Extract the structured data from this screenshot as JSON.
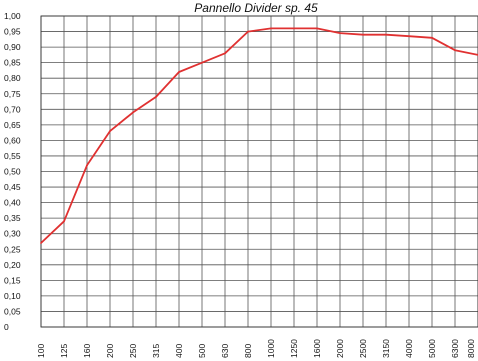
{
  "chart_data": {
    "type": "line",
    "title": "Pannello Divider sp. 45",
    "xlabel": "",
    "ylabel": "",
    "categories": [
      "100",
      "125",
      "160",
      "200",
      "250",
      "315",
      "400",
      "500",
      "630",
      "800",
      "1000",
      "1250",
      "1600",
      "2000",
      "2500",
      "3150",
      "4000",
      "5000",
      "6300",
      "8000"
    ],
    "y_tick_labels": [
      "1,00",
      "0,95",
      "0,90",
      "0,85",
      "0,80",
      "0,75",
      "0,70",
      "0,65",
      "0,60",
      "0,55",
      "0,50",
      "0,45",
      "0,40",
      "0,35",
      "0,30",
      "0,25",
      "0,20",
      "0,15",
      "0,10",
      "0,05",
      "0"
    ],
    "ylim": [
      0,
      1.0
    ],
    "grid": true,
    "series": [
      {
        "color": "#e03131",
        "values": [
          0.27,
          0.34,
          0.52,
          0.63,
          0.69,
          0.74,
          0.82,
          0.85,
          0.88,
          0.95,
          0.96,
          0.96,
          0.96,
          0.945,
          0.94,
          0.94,
          0.935,
          0.93,
          0.89,
          0.875
        ]
      }
    ]
  }
}
